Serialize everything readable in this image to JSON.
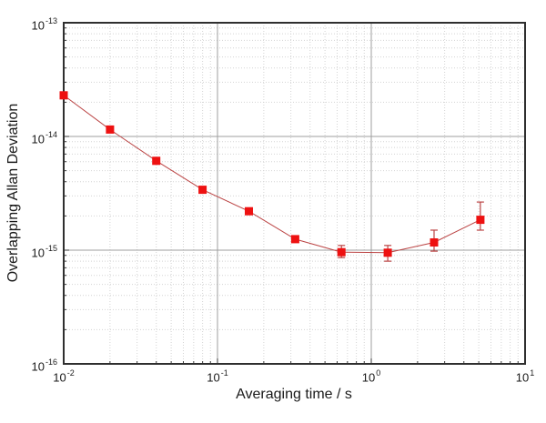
{
  "figure": {
    "background": "#ffffff",
    "frame_color": "#2f2f2f",
    "grid_major_color": "#9f9f9f",
    "grid_minor_color": "#d4d4d4"
  },
  "chart_data": {
    "type": "line",
    "title": "",
    "xlabel": "Averaging time / s",
    "ylabel": "Overlapping Allan Deviation",
    "x_scale": "log",
    "y_scale": "log",
    "xlim": [
      0.01,
      10
    ],
    "ylim": [
      1e-16,
      1e-13
    ],
    "x_tick_exponents": [
      -2,
      -1,
      0,
      1
    ],
    "y_tick_exponents": [
      -13,
      -14,
      -15,
      -16
    ],
    "grid": {
      "major": true,
      "minor": true,
      "minor_style": "dotted"
    },
    "legend": "none",
    "series": [
      {
        "name": "Overlapping Allan deviation",
        "marker": "square",
        "marker_size": 9,
        "marker_color": "#ee1111",
        "line_color": "#bb4444",
        "x": [
          0.01,
          0.02,
          0.04,
          0.08,
          0.16,
          0.32,
          0.64,
          1.28,
          2.56,
          5.12
        ],
        "y": [
          2.3e-14,
          1.15e-14,
          6.1e-15,
          3.4e-15,
          2.2e-15,
          1.25e-15,
          9.6e-16,
          9.5e-16,
          1.17e-15,
          1.85e-15
        ],
        "y_err_low": [
          null,
          null,
          null,
          null,
          null,
          null,
          8.6e-16,
          8e-16,
          9.8e-16,
          1.5e-15
        ],
        "y_err_high": [
          null,
          null,
          null,
          null,
          null,
          null,
          1.1e-15,
          1.1e-15,
          1.5e-15,
          2.65e-15
        ]
      }
    ]
  }
}
